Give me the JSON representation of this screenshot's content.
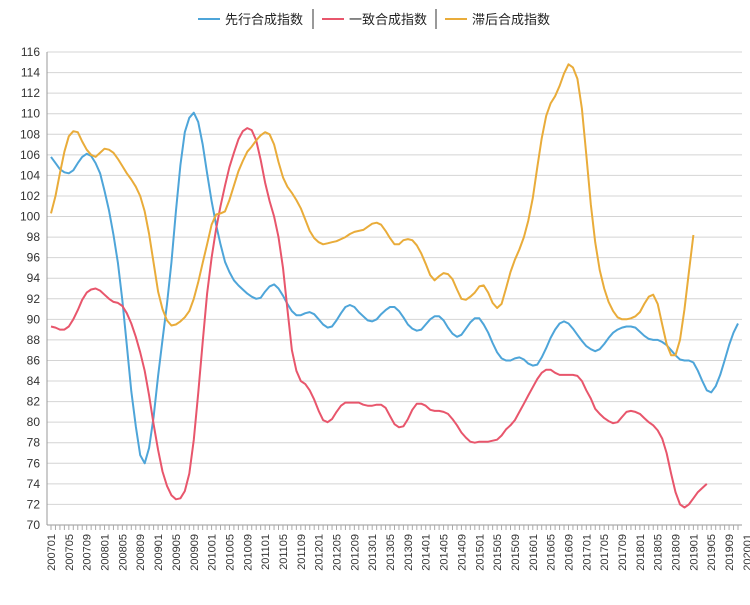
{
  "chart_data": {
    "type": "line",
    "title": "",
    "xlabel": "",
    "ylabel": "",
    "ylim": [
      70,
      116
    ],
    "yticks": [
      70,
      72,
      74,
      76,
      78,
      80,
      82,
      84,
      86,
      88,
      90,
      92,
      94,
      96,
      98,
      100,
      102,
      104,
      106,
      108,
      110,
      112,
      114,
      116
    ],
    "grid": true,
    "legend_position": "top",
    "x_start": "200701",
    "x_end": "202008",
    "x_tick_labels": [
      "200701",
      "200705",
      "200709",
      "200801",
      "200805",
      "200809",
      "200901",
      "200905",
      "200909",
      "201001",
      "201005",
      "201009",
      "201101",
      "201105",
      "201109",
      "201201",
      "201205",
      "201209",
      "201301",
      "201305",
      "201309",
      "201401",
      "201405",
      "201409",
      "201501",
      "201505",
      "201509",
      "201601",
      "201605",
      "201609",
      "201701",
      "201705",
      "201709",
      "201801",
      "201805",
      "201809",
      "201901",
      "201905",
      "201909",
      "202001",
      "202005"
    ],
    "series": [
      {
        "name": "先行合成指数",
        "color": "#4ea5d9",
        "values": [
          105.8,
          105.2,
          104.6,
          104.3,
          104.2,
          104.5,
          105.2,
          105.8,
          106.1,
          105.9,
          105.2,
          104.2,
          102.5,
          100.6,
          98.2,
          95.5,
          91.8,
          87.5,
          83.0,
          79.6,
          76.8,
          76.0,
          77.5,
          80.5,
          84.5,
          88.0,
          91.5,
          95.5,
          100.5,
          105.0,
          108.2,
          109.6,
          110.1,
          109.2,
          107.0,
          104.2,
          101.5,
          99.2,
          97.3,
          95.6,
          94.6,
          93.8,
          93.3,
          92.9,
          92.5,
          92.2,
          92.0,
          92.1,
          92.7,
          93.2,
          93.4,
          93.0,
          92.3,
          91.5,
          90.8,
          90.4,
          90.4,
          90.6,
          90.7,
          90.5,
          90.0,
          89.5,
          89.2,
          89.3,
          89.9,
          90.6,
          91.2,
          91.4,
          91.2,
          90.7,
          90.3,
          89.9,
          89.8,
          90.0,
          90.5,
          90.9,
          91.2,
          91.2,
          90.8,
          90.2,
          89.5,
          89.1,
          88.9,
          89.0,
          89.5,
          90.0,
          90.3,
          90.3,
          89.9,
          89.2,
          88.6,
          88.3,
          88.5,
          89.1,
          89.7,
          90.1,
          90.1,
          89.5,
          88.7,
          87.7,
          86.8,
          86.2,
          86.0,
          86.0,
          86.2,
          86.3,
          86.1,
          85.7,
          85.5,
          85.6,
          86.3,
          87.2,
          88.2,
          89.0,
          89.6,
          89.8,
          89.6,
          89.1,
          88.5,
          87.9,
          87.4,
          87.1,
          86.9,
          87.1,
          87.6,
          88.2,
          88.7,
          89.0,
          89.2,
          89.3,
          89.3,
          89.2,
          88.8,
          88.4,
          88.1,
          88.0,
          88.0,
          87.8,
          87.5,
          87.0,
          86.5,
          86.1,
          86.0,
          86.0,
          85.8,
          85.0,
          84.0,
          83.1,
          82.9,
          83.5,
          84.6,
          86.0,
          87.5,
          88.7,
          89.6
        ]
      },
      {
        "name": "一致合成指数",
        "color": "#e8566c",
        "values": [
          89.3,
          89.2,
          89.0,
          89.0,
          89.3,
          90.0,
          90.9,
          91.9,
          92.6,
          92.9,
          93.0,
          92.8,
          92.4,
          92.0,
          91.7,
          91.6,
          91.3,
          90.6,
          89.6,
          88.3,
          86.8,
          85.0,
          82.6,
          79.8,
          77.3,
          75.2,
          73.8,
          72.9,
          72.5,
          72.6,
          73.3,
          75.0,
          78.3,
          82.8,
          87.8,
          92.5,
          96.0,
          98.8,
          101.0,
          103.0,
          104.8,
          106.2,
          107.5,
          108.3,
          108.6,
          108.4,
          107.4,
          105.5,
          103.3,
          101.5,
          100.0,
          98.0,
          95.0,
          91.0,
          87.0,
          85.0,
          84.0,
          83.7,
          83.1,
          82.2,
          81.1,
          80.2,
          80.0,
          80.3,
          81.0,
          81.6,
          81.9,
          81.9,
          81.9,
          81.9,
          81.7,
          81.6,
          81.6,
          81.7,
          81.7,
          81.4,
          80.6,
          79.8,
          79.5,
          79.6,
          80.3,
          81.2,
          81.8,
          81.8,
          81.6,
          81.2,
          81.1,
          81.1,
          81.0,
          80.8,
          80.3,
          79.7,
          79.0,
          78.5,
          78.1,
          78.0,
          78.1,
          78.1,
          78.1,
          78.2,
          78.3,
          78.7,
          79.3,
          79.7,
          80.2,
          81.0,
          81.8,
          82.6,
          83.4,
          84.2,
          84.8,
          85.1,
          85.1,
          84.8,
          84.6,
          84.6,
          84.6,
          84.6,
          84.5,
          84.0,
          83.1,
          82.3,
          81.3,
          80.8,
          80.4,
          80.1,
          79.9,
          80.0,
          80.5,
          81.0,
          81.1,
          81.0,
          80.8,
          80.4,
          80.0,
          79.7,
          79.2,
          78.4,
          77.0,
          75.0,
          73.2,
          72.0,
          71.7,
          72.0,
          72.6,
          73.2,
          73.6,
          74.0
        ]
      },
      {
        "name": "滞后合成指数",
        "color": "#e9ac3a",
        "values": [
          100.3,
          102.0,
          104.2,
          106.3,
          107.8,
          108.3,
          108.2,
          107.3,
          106.5,
          106.0,
          105.8,
          106.2,
          106.6,
          106.5,
          106.2,
          105.6,
          104.9,
          104.2,
          103.6,
          102.9,
          102.0,
          100.5,
          98.3,
          95.5,
          92.7,
          91.0,
          89.9,
          89.4,
          89.5,
          89.8,
          90.2,
          90.8,
          92.0,
          93.6,
          95.5,
          97.3,
          99.2,
          100.2,
          100.3,
          100.5,
          101.6,
          103.0,
          104.4,
          105.4,
          106.3,
          106.8,
          107.4,
          107.9,
          108.2,
          108.0,
          107.0,
          105.3,
          103.8,
          102.9,
          102.3,
          101.6,
          100.8,
          99.7,
          98.6,
          97.9,
          97.5,
          97.3,
          97.4,
          97.5,
          97.6,
          97.8,
          98.0,
          98.3,
          98.5,
          98.6,
          98.7,
          99.0,
          99.3,
          99.4,
          99.2,
          98.6,
          97.9,
          97.3,
          97.3,
          97.7,
          97.8,
          97.7,
          97.2,
          96.4,
          95.4,
          94.3,
          93.8,
          94.2,
          94.5,
          94.4,
          93.9,
          92.9,
          92.0,
          91.9,
          92.2,
          92.6,
          93.2,
          93.3,
          92.6,
          91.6,
          91.1,
          91.5,
          93.0,
          94.6,
          95.8,
          96.8,
          98.0,
          99.6,
          101.8,
          104.8,
          107.6,
          109.8,
          111.0,
          111.7,
          112.7,
          113.9,
          114.8,
          114.5,
          113.4,
          110.5,
          106.0,
          101.2,
          97.5,
          94.8,
          93.0,
          91.7,
          90.8,
          90.2,
          90.0,
          90.0,
          90.1,
          90.3,
          90.7,
          91.5,
          92.2,
          92.4,
          91.5,
          89.5,
          87.6,
          86.5,
          86.5,
          88.0,
          91.0,
          94.6,
          98.2
        ]
      }
    ]
  }
}
